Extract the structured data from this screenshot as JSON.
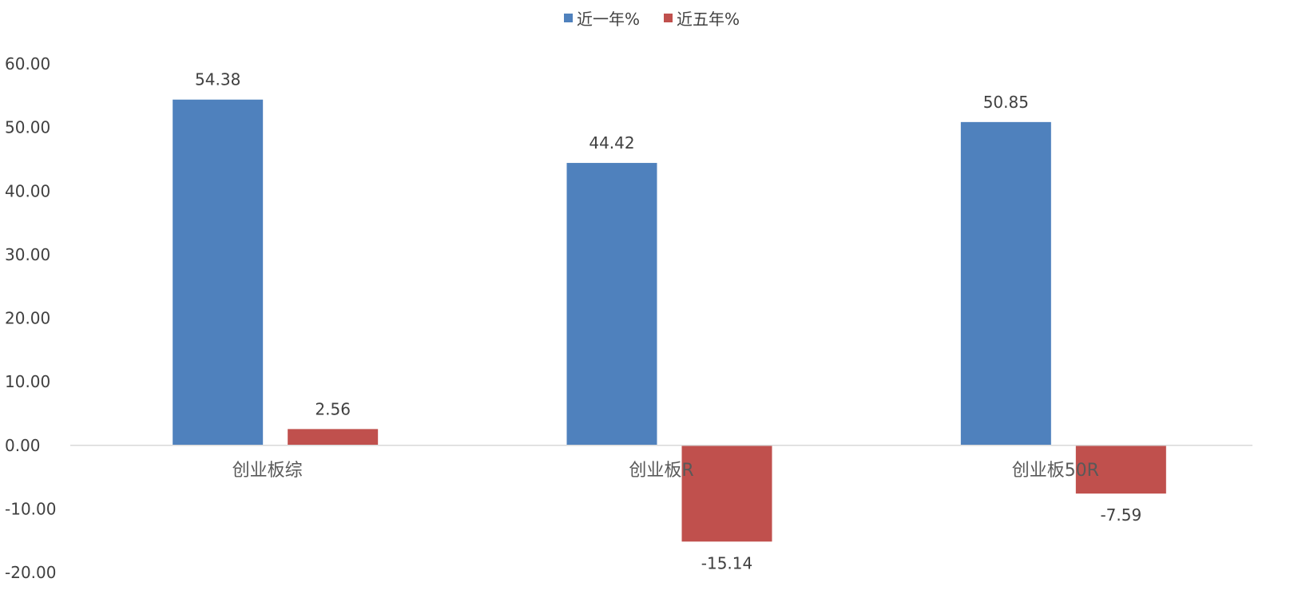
{
  "chart_data": {
    "type": "bar",
    "title": "",
    "xlabel": "",
    "ylabel": "",
    "categories": [
      "创业板综",
      "创业板R",
      "创业板50R"
    ],
    "series": [
      {
        "name": "近一年%",
        "values": [
          54.38,
          44.42,
          50.85
        ],
        "labels": [
          "54.38",
          "44.42",
          "50.85"
        ],
        "color": "#4F81BD"
      },
      {
        "name": "近五年%",
        "values": [
          2.56,
          -15.14,
          -7.59
        ],
        "labels": [
          "2.56",
          "-15.14",
          "-7.59"
        ],
        "color": "#C0504D"
      }
    ],
    "ylim": [
      -20,
      60
    ],
    "yticks": [
      60,
      50,
      40,
      30,
      20,
      10,
      0,
      -10,
      -20
    ],
    "ytick_labels": [
      "60.00",
      "50.00",
      "40.00",
      "30.00",
      "20.00",
      "10.00",
      "0.00",
      "-10.00",
      "-20.00"
    ],
    "grid": false,
    "legend_position": "top-center"
  }
}
